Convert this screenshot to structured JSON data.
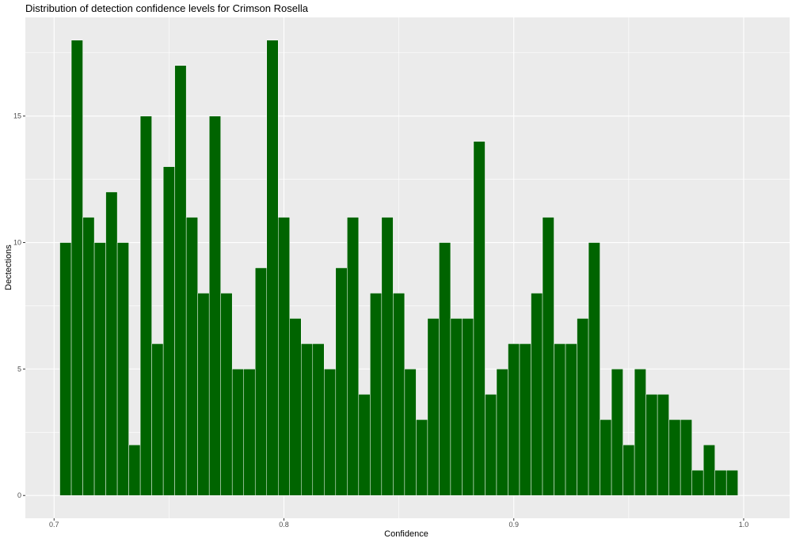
{
  "chart_data": {
    "type": "bar",
    "title": "Distribution of detection confidence levels for Crimson Rosella",
    "xlabel": "Confidence",
    "ylabel": "Dectections",
    "bin_width": 0.005,
    "x": [
      0.705,
      0.71,
      0.715,
      0.72,
      0.725,
      0.73,
      0.735,
      0.74,
      0.745,
      0.75,
      0.755,
      0.76,
      0.765,
      0.77,
      0.775,
      0.78,
      0.785,
      0.79,
      0.795,
      0.8,
      0.805,
      0.81,
      0.815,
      0.82,
      0.825,
      0.83,
      0.835,
      0.84,
      0.845,
      0.85,
      0.855,
      0.86,
      0.865,
      0.87,
      0.875,
      0.88,
      0.885,
      0.89,
      0.895,
      0.9,
      0.905,
      0.91,
      0.915,
      0.92,
      0.925,
      0.93,
      0.935,
      0.94,
      0.945,
      0.95,
      0.955,
      0.96,
      0.965,
      0.97,
      0.975,
      0.98,
      0.985,
      0.99,
      0.995
    ],
    "values": [
      10,
      18,
      11,
      10,
      12,
      10,
      2,
      15,
      6,
      13,
      17,
      11,
      8,
      15,
      8,
      5,
      5,
      9,
      18,
      11,
      7,
      6,
      6,
      5,
      9,
      11,
      4,
      8,
      11,
      8,
      5,
      3,
      7,
      10,
      7,
      7,
      14,
      4,
      5,
      6,
      6,
      8,
      11,
      6,
      6,
      7,
      10,
      3,
      5,
      2,
      5,
      4,
      4,
      3,
      3,
      1,
      2,
      1,
      1
    ],
    "xlim": [
      0.6875,
      1.02
    ],
    "ylim": [
      -0.9,
      18.9
    ],
    "x_ticks": [
      0.7,
      0.8,
      0.9,
      1.0
    ],
    "x_tick_labels": [
      "0.7",
      "0.8",
      "0.9",
      "1.0"
    ],
    "y_ticks": [
      0,
      5,
      10,
      15
    ],
    "y_tick_labels": [
      "0",
      "5",
      "10",
      "15"
    ],
    "bar_color": "#006400",
    "bar_outline": "#ffffff",
    "panel_background": "#ebebeb",
    "grid": true,
    "legend": "none"
  }
}
